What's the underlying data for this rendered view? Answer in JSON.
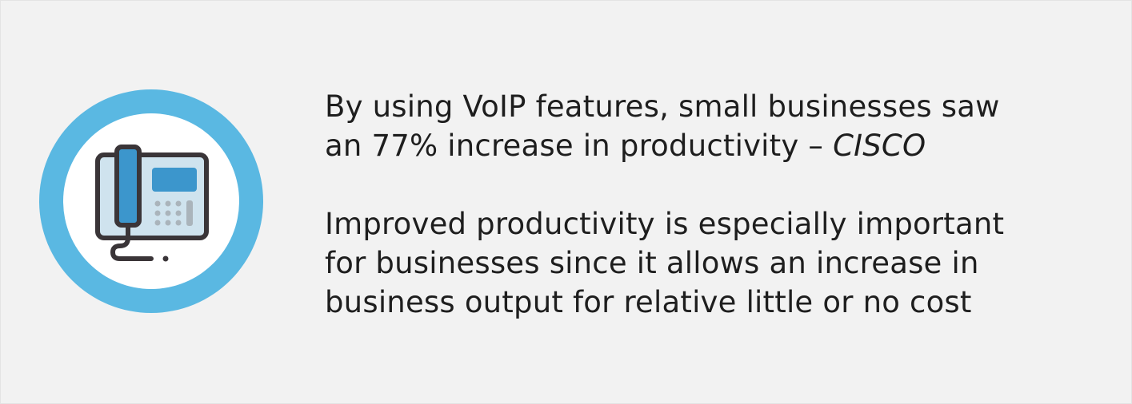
{
  "icon": {
    "name": "desk-phone-icon",
    "colors": {
      "ring": "#5ab8e2",
      "inner": "#ffffff",
      "outline": "#3a3538",
      "accent": "#3c96cc",
      "body": "#cfe3ee",
      "keys": "#aab4bb"
    }
  },
  "stat": {
    "line1": "By using VoIP features, small businesses saw",
    "line2_text": "an 77% increase in productivity – ",
    "source": "CISCO"
  },
  "explanation": {
    "line1": "Improved productivity is especially important",
    "line2": "for businesses since it allows an increase in",
    "line3": "business output for relative little or no cost"
  }
}
